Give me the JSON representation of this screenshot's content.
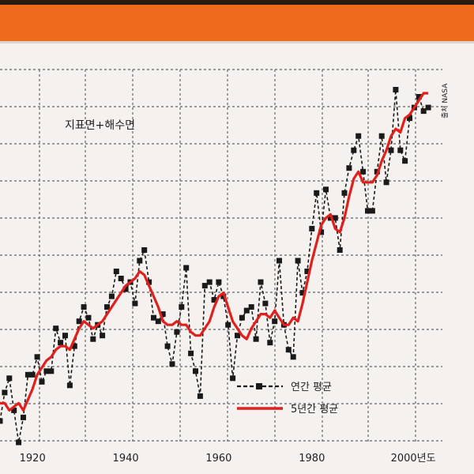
{
  "colors": {
    "banner": "#ee6a1c",
    "top_strip": "#2a1a10",
    "annual": "#1a1a1a",
    "five_year": "#e0201e",
    "grid": "#7a7a7a",
    "background": "#f4f1ee"
  },
  "chart_data": {
    "type": "line",
    "title": "지표면+해수면",
    "xlabel": "",
    "ylabel": "",
    "x_tick_labels": [
      "1920",
      "1940",
      "1960",
      "1980",
      "2000년도"
    ],
    "x_tick_values": [
      1920,
      1940,
      1960,
      1980,
      2000
    ],
    "xlim": [
      1913,
      2006
    ],
    "ylim": [
      -0.36,
      0.66
    ],
    "grid": true,
    "legend_position": "bottom-right",
    "credit": "출처 NASA",
    "series": [
      {
        "name": "연간 평균",
        "style": "dashed-markers",
        "x": [
          1913,
          1914,
          1915,
          1916,
          1917,
          1918,
          1919,
          1920,
          1921,
          1922,
          1923,
          1924,
          1925,
          1926,
          1927,
          1928,
          1929,
          1930,
          1931,
          1932,
          1933,
          1934,
          1935,
          1936,
          1937,
          1938,
          1939,
          1940,
          1941,
          1942,
          1943,
          1944,
          1945,
          1946,
          1947,
          1948,
          1949,
          1950,
          1951,
          1952,
          1953,
          1954,
          1955,
          1956,
          1957,
          1958,
          1959,
          1960,
          1961,
          1962,
          1963,
          1964,
          1965,
          1966,
          1967,
          1968,
          1969,
          1970,
          1971,
          1972,
          1973,
          1974,
          1975,
          1976,
          1977,
          1978,
          1979,
          1980,
          1981,
          1982,
          1983,
          1984,
          1985,
          1986,
          1987,
          1988,
          1989,
          1990,
          1991,
          1992,
          1993,
          1994,
          1995,
          1996,
          1997,
          1998,
          1999,
          2000,
          2001,
          2002,
          2003,
          2004,
          2005
        ],
        "y": [
          -0.3,
          -0.22,
          -0.18,
          -0.27,
          -0.36,
          -0.29,
          -0.17,
          -0.17,
          -0.12,
          -0.19,
          -0.16,
          -0.16,
          -0.04,
          -0.08,
          -0.06,
          -0.2,
          -0.09,
          -0.02,
          0.02,
          -0.01,
          -0.07,
          -0.03,
          -0.06,
          0.02,
          0.05,
          0.12,
          0.1,
          0.07,
          0.09,
          0.03,
          0.15,
          0.18,
          0.09,
          -0.01,
          -0.02,
          0.0,
          -0.09,
          -0.14,
          -0.05,
          0.02,
          0.13,
          -0.11,
          -0.16,
          -0.23,
          0.08,
          0.09,
          0.04,
          0.09,
          0.05,
          -0.03,
          -0.18,
          -0.06,
          -0.01,
          0.01,
          0.02,
          -0.07,
          0.09,
          0.03,
          -0.08,
          -0.02,
          0.15,
          -0.03,
          -0.1,
          -0.12,
          0.15,
          0.06,
          0.12,
          0.24,
          0.34,
          0.23,
          0.35,
          0.27,
          0.27,
          0.18,
          0.34,
          0.41,
          0.46,
          0.5,
          0.4,
          0.29,
          0.29,
          0.4,
          0.5,
          0.37,
          0.46,
          0.63,
          0.46,
          0.43,
          0.55,
          0.58,
          0.61,
          0.57,
          0.58
        ]
      },
      {
        "name": "5년간 평균",
        "style": "solid",
        "x": [
          1913,
          1914,
          1915,
          1916,
          1917,
          1918,
          1919,
          1920,
          1921,
          1922,
          1923,
          1924,
          1925,
          1926,
          1927,
          1928,
          1929,
          1930,
          1931,
          1932,
          1933,
          1934,
          1935,
          1936,
          1937,
          1938,
          1939,
          1940,
          1941,
          1942,
          1943,
          1944,
          1945,
          1946,
          1947,
          1948,
          1949,
          1950,
          1951,
          1952,
          1953,
          1954,
          1955,
          1956,
          1957,
          1958,
          1959,
          1960,
          1961,
          1962,
          1963,
          1964,
          1965,
          1966,
          1967,
          1968,
          1969,
          1970,
          1971,
          1972,
          1973,
          1974,
          1975,
          1976,
          1977,
          1978,
          1979,
          1980,
          1981,
          1982,
          1983,
          1984,
          1985,
          1986,
          1987,
          1988,
          1989,
          1990,
          1991,
          1992,
          1993,
          1994,
          1995,
          1996,
          1997,
          1998,
          1999,
          2000,
          2001,
          2002,
          2003,
          2004,
          2005
        ],
        "y": [
          -0.25,
          -0.25,
          -0.27,
          -0.26,
          -0.25,
          -0.27,
          -0.24,
          -0.21,
          -0.17,
          -0.15,
          -0.13,
          -0.12,
          -0.1,
          -0.09,
          -0.09,
          -0.1,
          -0.07,
          -0.04,
          -0.02,
          -0.03,
          -0.04,
          -0.03,
          -0.02,
          0.0,
          0.02,
          0.04,
          0.06,
          0.08,
          0.09,
          0.1,
          0.12,
          0.11,
          0.08,
          0.05,
          0.02,
          -0.02,
          -0.03,
          -0.03,
          -0.02,
          -0.03,
          -0.03,
          -0.05,
          -0.06,
          -0.06,
          -0.04,
          -0.02,
          0.02,
          0.05,
          0.06,
          0.02,
          -0.02,
          -0.04,
          -0.06,
          -0.07,
          -0.04,
          -0.02,
          0.0,
          0.0,
          -0.01,
          0.01,
          -0.01,
          -0.03,
          -0.03,
          -0.01,
          -0.02,
          0.03,
          0.09,
          0.15,
          0.2,
          0.25,
          0.27,
          0.28,
          0.24,
          0.23,
          0.27,
          0.33,
          0.38,
          0.4,
          0.37,
          0.37,
          0.37,
          0.39,
          0.43,
          0.46,
          0.5,
          0.52,
          0.51,
          0.55,
          0.56,
          0.58,
          0.6,
          0.62,
          0.62
        ]
      }
    ]
  }
}
